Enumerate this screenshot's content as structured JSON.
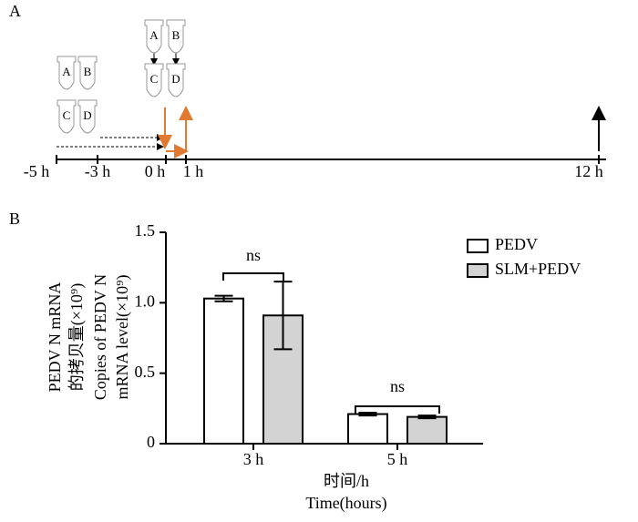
{
  "panel_a": {
    "label": "A",
    "tubes_left": [
      "A",
      "B",
      "C",
      "D"
    ],
    "tubes_right": [
      "A",
      "B",
      "C",
      "D"
    ],
    "timepoints": [
      "-5 h",
      "-3 h",
      "0 h",
      "1 h",
      "12 h"
    ]
  },
  "chart_data": {
    "type": "bar",
    "panel_label": "B",
    "y_label": [
      "PEDV N mRNA",
      "的拷贝量(×10⁹)",
      "Copies of PEDV N",
      "mRNA level(×10⁹)"
    ],
    "x_label": [
      "时间/h",
      "Time(hours)"
    ],
    "categories": [
      "3 h",
      "5 h"
    ],
    "series": [
      {
        "name": "PEDV",
        "color": "#ffffff",
        "values": [
          1.03,
          0.21
        ],
        "errors": [
          0.02,
          0.01
        ]
      },
      {
        "name": "SLM+PEDV",
        "color": "#d3d3d3",
        "values": [
          0.91,
          0.19
        ],
        "errors": [
          0.24,
          0.01
        ]
      }
    ],
    "annotations": [
      "ns",
      "ns"
    ],
    "ylim": [
      0,
      1.5
    ],
    "yticks": [
      0,
      0.5,
      {
        "value": 1,
        "label": "1.0"
      },
      1.5
    ],
    "legend": "upper right"
  }
}
